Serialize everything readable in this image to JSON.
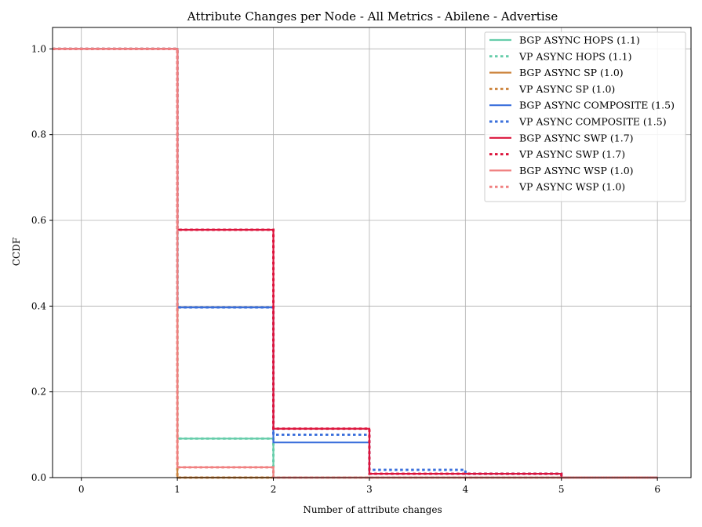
{
  "chart_data": {
    "type": "line",
    "step": true,
    "title": "Attribute Changes per Node - All Metrics - Abilene - Advertise",
    "xlabel": "Number of attribute changes",
    "ylabel": "CCDF",
    "xlim": [
      -0.3,
      6.35
    ],
    "ylim": [
      0,
      1.05
    ],
    "xticks": [
      0,
      1,
      2,
      3,
      4,
      5,
      6
    ],
    "yticks": [
      0.0,
      0.2,
      0.4,
      0.6,
      0.8,
      1.0
    ],
    "xtick_labels": [
      "0",
      "1",
      "2",
      "3",
      "4",
      "5",
      "6"
    ],
    "ytick_labels": [
      "0.0",
      "0.2",
      "0.4",
      "0.6",
      "0.8",
      "1.0"
    ],
    "grid": true,
    "legend_position": "top-right",
    "series": [
      {
        "name": "BGP ASYNC HOPS (1.1)",
        "color": "#66cdaa",
        "style": "solid",
        "x": [
          -0.3,
          1,
          2,
          3,
          6
        ],
        "y": [
          1.0,
          0.091,
          0.0,
          0.0,
          0.0
        ]
      },
      {
        "name": "VP ASYNC HOPS (1.1)",
        "color": "#66cdaa",
        "style": "dotted",
        "x": [
          -0.3,
          1,
          2,
          3,
          6
        ],
        "y": [
          1.0,
          0.091,
          0.0,
          0.0,
          0.0
        ]
      },
      {
        "name": "BGP ASYNC SP (1.0)",
        "color": "#cd853f",
        "style": "solid",
        "x": [
          -0.3,
          1,
          2,
          6
        ],
        "y": [
          1.0,
          0.0,
          0.0,
          0.0
        ]
      },
      {
        "name": "VP ASYNC SP (1.0)",
        "color": "#cd853f",
        "style": "dotted",
        "x": [
          -0.3,
          1,
          2,
          6
        ],
        "y": [
          1.0,
          0.0,
          0.0,
          0.0
        ]
      },
      {
        "name": "BGP ASYNC COMPOSITE (1.5)",
        "color": "#3a6fdb",
        "style": "solid",
        "x": [
          -0.3,
          1,
          2,
          3,
          4,
          5,
          6
        ],
        "y": [
          1.0,
          0.397,
          0.082,
          0.009,
          0.009,
          0.0,
          0.0
        ]
      },
      {
        "name": "VP ASYNC COMPOSITE (1.5)",
        "color": "#3a6fdb",
        "style": "dotted",
        "x": [
          -0.3,
          1,
          2,
          3,
          4,
          5,
          6
        ],
        "y": [
          1.0,
          0.397,
          0.1,
          0.018,
          0.009,
          0.0,
          0.0
        ]
      },
      {
        "name": "BGP ASYNC SWP (1.7)",
        "color": "#dc143c",
        "style": "solid",
        "x": [
          -0.3,
          1,
          2,
          3,
          4,
          5,
          6
        ],
        "y": [
          1.0,
          0.578,
          0.114,
          0.009,
          0.009,
          0.0,
          0.0
        ]
      },
      {
        "name": "VP ASYNC SWP (1.7)",
        "color": "#dc143c",
        "style": "dotted",
        "x": [
          -0.3,
          1,
          2,
          3,
          4,
          5,
          6
        ],
        "y": [
          1.0,
          0.578,
          0.114,
          0.009,
          0.009,
          0.0,
          0.0
        ]
      },
      {
        "name": "BGP ASYNC WSP (1.0)",
        "color": "#f08080",
        "style": "solid",
        "x": [
          -0.3,
          1,
          2,
          3,
          6
        ],
        "y": [
          1.0,
          0.024,
          0.0,
          0.0,
          0.0
        ]
      },
      {
        "name": "VP ASYNC WSP (1.0)",
        "color": "#f08080",
        "style": "dotted",
        "x": [
          -0.3,
          1,
          2,
          3,
          6
        ],
        "y": [
          1.0,
          0.024,
          0.0,
          0.0,
          0.0
        ]
      }
    ]
  }
}
